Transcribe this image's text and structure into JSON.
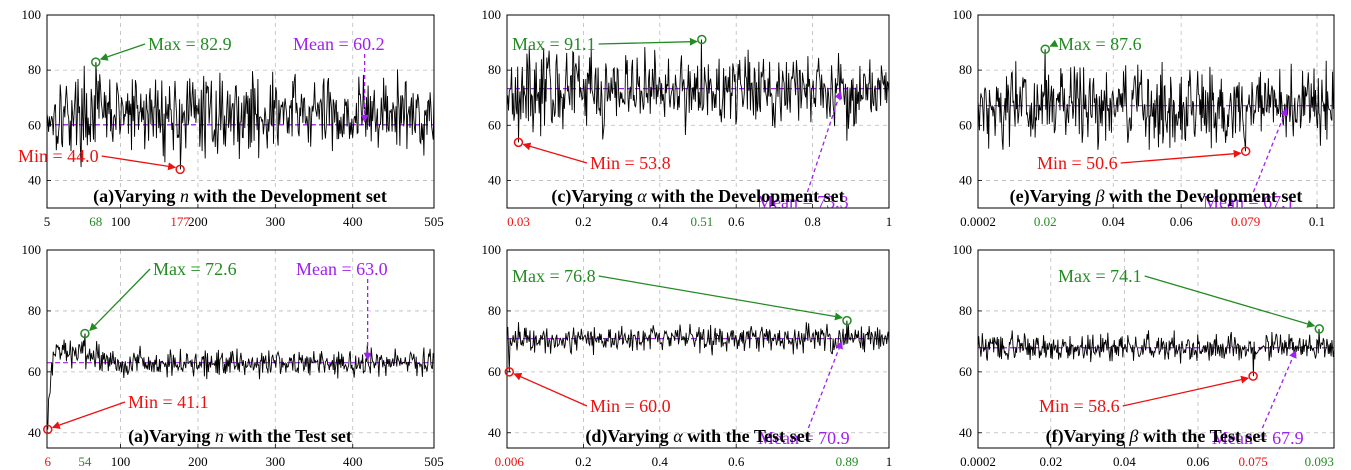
{
  "colors": {
    "max": "#228b22",
    "min": "#ee1111",
    "mean": "#a020f0",
    "series": "#000000",
    "grid": "#bbbbbb"
  },
  "chart_data": [
    {
      "type": "line",
      "id": "a_dev",
      "title_prefix": "(a)Varying ",
      "symbol": "n",
      "title_suffix": " with the Development set",
      "xlim": [
        5,
        505
      ],
      "ylim": [
        30,
        100
      ],
      "grid": true,
      "xticks": [
        5,
        100,
        200,
        300,
        400,
        505
      ],
      "yticks": [
        40,
        60,
        80,
        100
      ],
      "n_points": 500,
      "style": "noisy",
      "base": 64,
      "spread": 7,
      "max": {
        "x": 68,
        "y": 82.9,
        "label": "Max = 82.9",
        "tick": "68"
      },
      "min": {
        "x": 177,
        "y": 44.0,
        "label": "Min = 44.0",
        "tick": "177"
      },
      "mean": {
        "y": 60.2,
        "label": "Mean = 60.2"
      }
    },
    {
      "type": "line",
      "id": "c_dev",
      "title_prefix": "(c)Varying ",
      "symbol": "α",
      "title_suffix": " with the Development set",
      "xlim": [
        0.0,
        1.0
      ],
      "ylim": [
        30,
        100
      ],
      "grid": true,
      "xticks": [
        0.2,
        0.4,
        0.6,
        0.8,
        1
      ],
      "yticks": [
        40,
        60,
        80,
        100
      ],
      "n_points": 500,
      "style": "noisy",
      "base": 73,
      "spread": 7,
      "max": {
        "x": 0.51,
        "y": 91.1,
        "label": "Max = 91.1",
        "tick": "0.51"
      },
      "min": {
        "x": 0.03,
        "y": 53.8,
        "label": "Min = 53.8",
        "tick": "0.03"
      },
      "mean": {
        "y": 73.3,
        "label": "Mean = 73.3"
      }
    },
    {
      "type": "line",
      "id": "e_dev",
      "title_prefix": "(e)Varying ",
      "symbol": "β",
      "title_suffix": " with the Development set",
      "xlim": [
        0.0002,
        0.105
      ],
      "ylim": [
        30,
        100
      ],
      "grid": true,
      "xticks": [
        0.0002,
        0.04,
        0.06,
        0.1
      ],
      "xtick_labels": [
        "0.0002",
        "0.04",
        "0.06",
        "0.1"
      ],
      "yticks": [
        40,
        60,
        80,
        100
      ],
      "n_points": 500,
      "style": "noisy",
      "base": 67,
      "spread": 7,
      "max": {
        "x": 0.02,
        "y": 87.6,
        "label": "Max = 87.6",
        "tick": "0.02"
      },
      "min": {
        "x": 0.079,
        "y": 50.6,
        "label": "Min = 50.6",
        "tick": "0.079"
      },
      "mean": {
        "y": 67.1,
        "label": "Mean = 67.1"
      }
    },
    {
      "type": "line",
      "id": "a_test",
      "title_prefix": "(a)Varying ",
      "symbol": "n",
      "title_suffix": " with the Test set",
      "xlim": [
        5,
        505
      ],
      "ylim": [
        35,
        100
      ],
      "grid": true,
      "xticks": [
        100,
        200,
        300,
        400,
        505
      ],
      "yticks": [
        40,
        60,
        80,
        100
      ],
      "n_points": 500,
      "style": "rise",
      "base": 63,
      "spread": 2.2,
      "max": {
        "x": 54,
        "y": 72.6,
        "label": "Max = 72.6",
        "tick": "54"
      },
      "min": {
        "x": 6,
        "y": 41.1,
        "label": "Min = 41.1",
        "tick": "6"
      },
      "mean": {
        "y": 63.0,
        "label": "Mean = 63.0"
      }
    },
    {
      "type": "line",
      "id": "d_test",
      "title_prefix": "(d)Varying ",
      "symbol": "α",
      "title_suffix": " with the Test set",
      "xlim": [
        0.0,
        1.0
      ],
      "ylim": [
        35,
        100
      ],
      "grid": true,
      "xticks": [
        0.2,
        0.4,
        0.6,
        1
      ],
      "yticks": [
        40,
        60,
        80,
        100
      ],
      "n_points": 500,
      "style": "flat",
      "base": 71,
      "spread": 2.2,
      "max": {
        "x": 0.89,
        "y": 76.8,
        "label": "Max = 76.8",
        "tick": "0.89"
      },
      "min": {
        "x": 0.006,
        "y": 60.0,
        "label": "Min = 60.0",
        "tick": "0.006"
      },
      "mean": {
        "y": 70.9,
        "label": "Mean = 70.9"
      }
    },
    {
      "type": "line",
      "id": "f_test",
      "title_prefix": "(f)Varying ",
      "symbol": "β",
      "title_suffix": " with the Test set",
      "xlim": [
        0.0002,
        0.097
      ],
      "ylim": [
        35,
        100
      ],
      "grid": true,
      "xticks": [
        0.0002,
        0.02,
        0.04,
        0.06
      ],
      "xtick_labels": [
        "0.0002",
        "0.02",
        "0.04",
        "0.06"
      ],
      "yticks": [
        40,
        60,
        80,
        100
      ],
      "n_points": 500,
      "style": "flat",
      "base": 68,
      "spread": 2.2,
      "max": {
        "x": 0.093,
        "y": 74.1,
        "label": "Max = 74.1",
        "tick": "0.093"
      },
      "min": {
        "x": 0.075,
        "y": 58.6,
        "label": "Min = 58.6",
        "tick": "0.075"
      },
      "mean": {
        "y": 67.9,
        "label": "Mean = 67.9"
      }
    }
  ]
}
